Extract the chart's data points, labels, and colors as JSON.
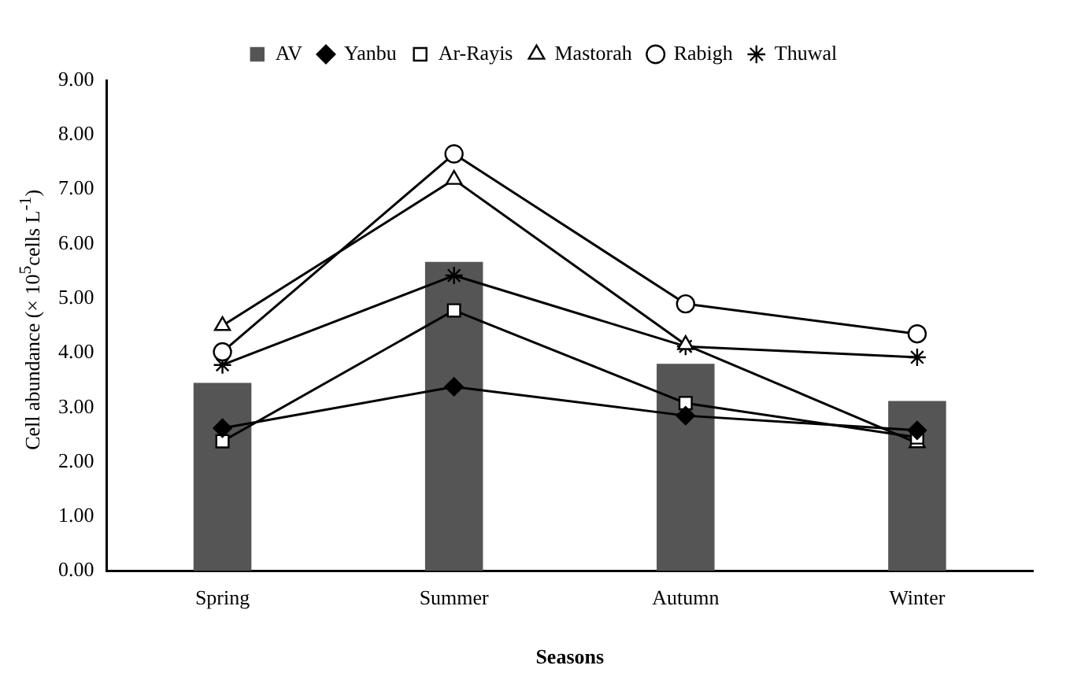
{
  "chart_data": {
    "type": "bar",
    "xlabel": "Seasons",
    "ylabel": "Cell abundance (× 10$^{5}$cells L$^{-1}$)",
    "categories": [
      "Spring",
      "Summer",
      "Autumn",
      "Winter"
    ],
    "ylim": [
      0,
      9
    ],
    "yticks": [
      {
        "value": 0,
        "label": "0.00"
      },
      {
        "value": 1,
        "label": "1.00"
      },
      {
        "value": 2,
        "label": "2.00"
      },
      {
        "value": 3,
        "label": "3.00"
      },
      {
        "value": 4,
        "label": "4.00"
      },
      {
        "value": 5,
        "label": "5.00"
      },
      {
        "value": 6,
        "label": "6.00"
      },
      {
        "value": 7,
        "label": "7.00"
      },
      {
        "value": 8,
        "label": "8.00"
      },
      {
        "value": 9,
        "label": "9.00"
      }
    ],
    "grid": false,
    "legend": "top",
    "series": [
      {
        "name": "AV",
        "color": "#555555",
        "values": [
          3.45,
          5.67,
          3.8,
          3.12
        ]
      },
      {
        "name": "Yanbu",
        "type": "line",
        "color": "#000000",
        "marker": "diamond",
        "values": [
          2.62,
          3.38,
          2.85,
          2.58
        ]
      },
      {
        "name": "Ar-Rayis",
        "type": "line",
        "color": "#000000",
        "marker": "square",
        "values": [
          2.38,
          4.78,
          3.08,
          2.45
        ]
      },
      {
        "name": "Mastorah",
        "type": "line",
        "color": "#000000",
        "marker": "triangle",
        "values": [
          4.5,
          7.18,
          4.15,
          2.35
        ]
      },
      {
        "name": "Rabigh",
        "type": "line",
        "color": "#000000",
        "marker": "circle",
        "values": [
          4.02,
          7.65,
          4.9,
          4.35
        ]
      },
      {
        "name": "Thuwal",
        "type": "line",
        "color": "#000000",
        "marker": "cross",
        "values": [
          3.78,
          5.42,
          4.12,
          3.92
        ]
      }
    ]
  }
}
